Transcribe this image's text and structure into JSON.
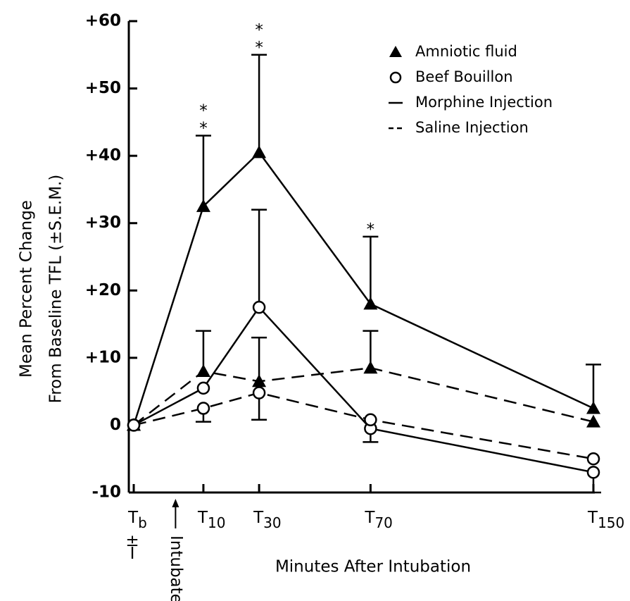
{
  "chart_data": {
    "type": "line",
    "ylabel": [
      "Mean Percent Change",
      "From Baseline TFL (±S.E.M.)"
    ],
    "xlabel": "Minutes After Intubation",
    "x": [
      -15,
      10,
      30,
      70,
      150
    ],
    "xlim": [
      -15,
      150
    ],
    "xticks": [
      {
        "value": -15,
        "label": "Tb"
      },
      {
        "value": 10,
        "label": "T10"
      },
      {
        "value": 30,
        "label": "T30"
      },
      {
        "value": 70,
        "label": "T70"
      },
      {
        "value": 150,
        "label": "T150"
      }
    ],
    "tb_note": "±I",
    "intubation": {
      "label": "Intubate",
      "x": 0
    },
    "ylim": [
      -10,
      60
    ],
    "yticks": [
      -10,
      0,
      {
        "value": 10,
        "label": "+10"
      },
      {
        "value": 20,
        "label": "+20"
      },
      {
        "value": 30,
        "label": "+30"
      },
      {
        "value": 40,
        "label": "+40"
      },
      {
        "value": 50,
        "label": "+50"
      },
      {
        "value": 60,
        "label": "+60"
      }
    ],
    "legend": [
      {
        "name": "Amniotic fluid",
        "marker": "triangle"
      },
      {
        "name": "Beef Bouillon",
        "marker": "circle"
      },
      {
        "name": "Morphine Injection",
        "line": "solid"
      },
      {
        "name": "Saline Injection",
        "line": "dashed"
      }
    ],
    "series": [
      {
        "marker": "triangle",
        "line": "solid",
        "color": "#000000",
        "values": [
          0,
          32.5,
          40.5,
          18,
          2.5
        ],
        "errors": [
          null,
          10.5,
          14.5,
          10,
          6.5
        ],
        "error_directions": [
          null,
          "up",
          "up",
          "up",
          "up"
        ],
        "value_notes": [
          null,
          "**",
          "**",
          "*",
          null
        ]
      },
      {
        "marker": "triangle",
        "line": "dashed",
        "color": "#000000",
        "values": [
          0,
          8,
          6.5,
          8.5,
          0.5
        ],
        "errors": [
          null,
          6,
          6.5,
          5.5,
          null
        ],
        "error_directions": [
          null,
          "up",
          "up",
          "up",
          null
        ]
      },
      {
        "marker": "circle",
        "line": "solid",
        "color": "#000000",
        "values": [
          0,
          5.5,
          17.5,
          -0.5,
          -7
        ],
        "errors": [
          null,
          null,
          14.5,
          2,
          3
        ],
        "error_directions": [
          null,
          null,
          "up",
          "down",
          "down"
        ]
      },
      {
        "marker": "circle",
        "line": "dashed",
        "color": "#000000",
        "values": [
          0,
          2.5,
          4.8,
          0.8,
          -5
        ],
        "errors": [
          null,
          2,
          4,
          null,
          null
        ],
        "error_directions": [
          null,
          "down",
          "down",
          null,
          null
        ]
      }
    ]
  }
}
